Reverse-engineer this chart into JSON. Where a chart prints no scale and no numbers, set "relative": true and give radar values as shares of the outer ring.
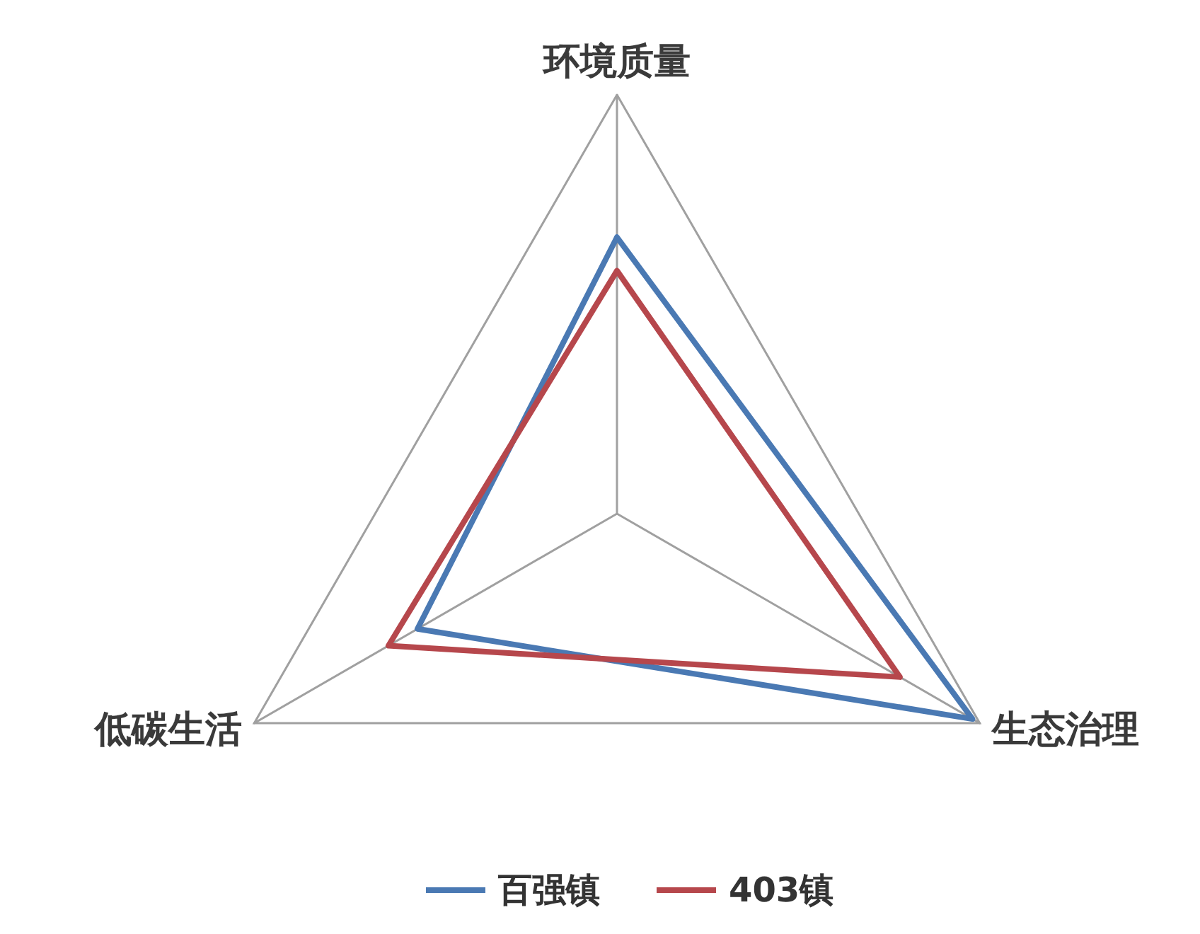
{
  "chart_data": {
    "type": "radar",
    "categories": [
      "环境质量",
      "生态治理",
      "低碳生活"
    ],
    "relative": true,
    "series": [
      {
        "name": "百强镇",
        "color": "#4a79b3",
        "values": [
          0.66,
          0.98,
          0.55
        ]
      },
      {
        "name": "403镇",
        "color": "#b6474c",
        "values": [
          0.58,
          0.78,
          0.63
        ]
      }
    ],
    "legend": "bottom",
    "marker": "none",
    "grid": true
  }
}
